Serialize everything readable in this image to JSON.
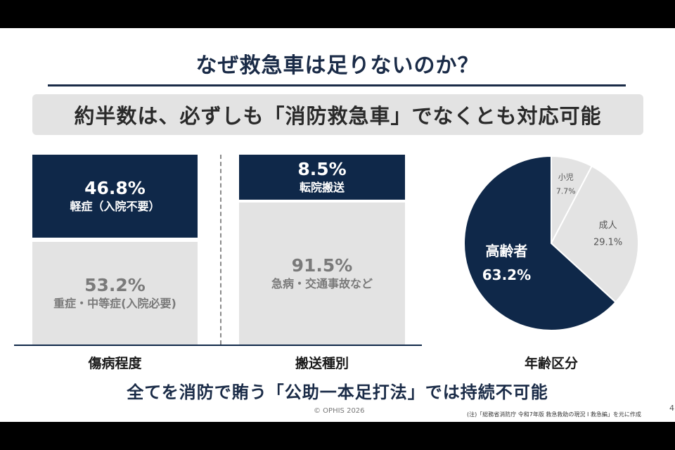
{
  "title": "なぜ救急車は足りないのか？",
  "subtitle": "約半数は、必ずしも「消防救急車」でなくとも対応可能",
  "injury": {
    "category": "傷病程度",
    "top": {
      "pct": "46.8%",
      "label": "軽症（入院不要）"
    },
    "bottom": {
      "pct": "53.2%",
      "label": "重症・中等症(入院必要)"
    }
  },
  "transport": {
    "category": "搬送種別",
    "top": {
      "pct": "8.5%",
      "label": "転院搬送"
    },
    "bottom": {
      "pct": "91.5%",
      "label": "急病・交通事故など"
    }
  },
  "age": {
    "category": "年齢区分"
  },
  "chart_data": {
    "type": "pie",
    "slices": [
      {
        "label": "高齢者",
        "value": 63.2,
        "display": "63.2%",
        "color": "#0f2849"
      },
      {
        "label": "小児",
        "value": 7.7,
        "display": "7.7%",
        "color": "#e3e3e3"
      },
      {
        "label": "成人",
        "value": 29.1,
        "display": "29.1%",
        "color": "#e3e3e3"
      }
    ]
  },
  "footer": "全てを消防で賄う「公助一本足打法」では持続不可能",
  "copyright": "© OPHIS 2026",
  "note": "(注)「総務省消防庁 令和7年版 救急救助の現況 Ⅰ 救急編」を元に作成",
  "page_number": "4",
  "colors": {
    "navy": "#0f2849",
    "gray": "#e3e3e3"
  }
}
